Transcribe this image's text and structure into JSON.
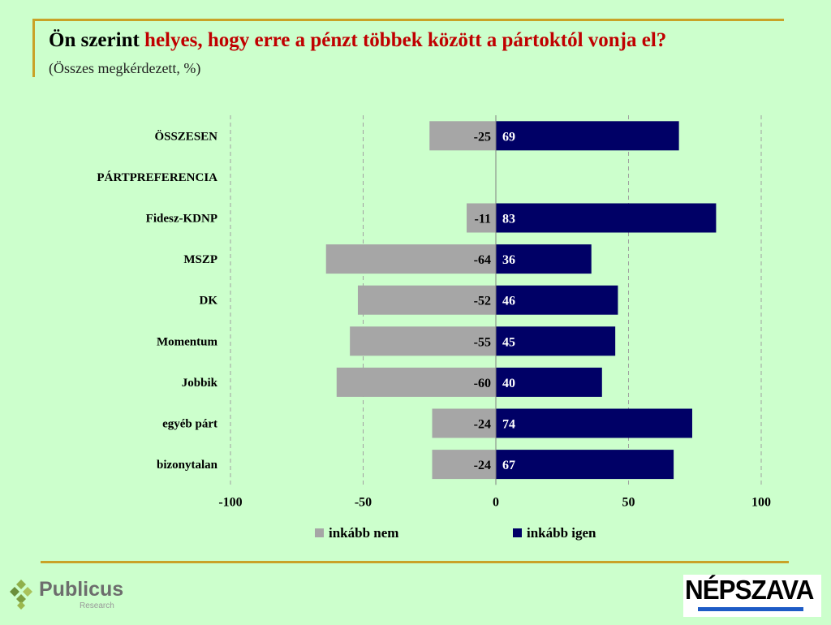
{
  "title": {
    "part1": "Ön szerint ",
    "part2": "helyes, hogy erre a pénzt többek között a pártoktól vonja el?"
  },
  "subtitle": "(Összes megkérdezett, %)",
  "chart_data": {
    "type": "bar",
    "orientation": "horizontal-diverging",
    "categories": [
      "ÖSSZESEN",
      "PÁRTPREFERENCIA",
      "Fidesz-KDNP",
      "MSZP",
      "DK",
      "Momentum",
      "Jobbik",
      "egyéb párt",
      "bizonytalan"
    ],
    "bold_categories": [
      "ÖSSZESEN",
      "PÁRTPREFERENCIA"
    ],
    "series": [
      {
        "name": "inkább nem",
        "color": "#a6a6a6",
        "values": [
          -25,
          null,
          -11,
          -64,
          -52,
          -55,
          -60,
          -24,
          -24
        ]
      },
      {
        "name": "inkább igen",
        "color": "#000066",
        "values": [
          69,
          null,
          83,
          36,
          46,
          45,
          40,
          74,
          67
        ]
      }
    ],
    "xlim": [
      -100,
      100
    ],
    "xticks": [
      "-100",
      "-50",
      "0",
      "50",
      "100"
    ],
    "grid": "vertical dashed",
    "legend": "bottom"
  },
  "logos": {
    "publicus": "Publicus",
    "publicus_sub": "Research",
    "nepszava": "NÉPSZAVA"
  }
}
